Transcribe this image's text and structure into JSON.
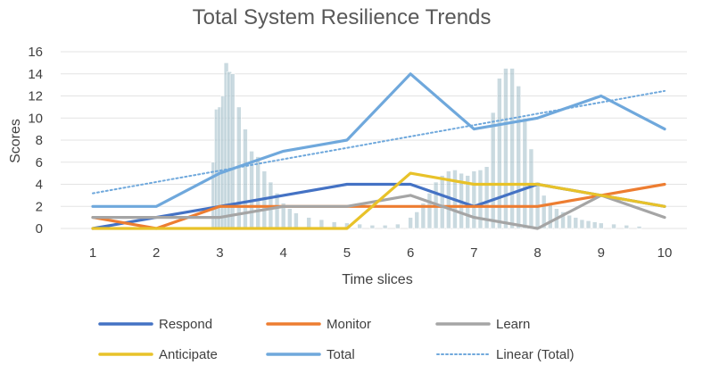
{
  "chart_data": {
    "type": "line",
    "title": "Total System Resilience Trends",
    "xlabel": "Time slices",
    "ylabel": "Scores",
    "x": [
      1,
      2,
      3,
      4,
      5,
      6,
      7,
      8,
      9,
      10
    ],
    "ylim": [
      0,
      16
    ],
    "yticks": [
      0,
      2,
      4,
      6,
      8,
      10,
      12,
      14,
      16
    ],
    "grid": true,
    "legend_position": "bottom",
    "series": [
      {
        "name": "Respond",
        "color": "#4472C4",
        "style": "solid",
        "values": [
          0,
          1,
          2,
          3,
          4,
          4,
          2,
          4,
          3,
          2
        ]
      },
      {
        "name": "Monitor",
        "color": "#ED7D31",
        "style": "solid",
        "values": [
          1,
          0,
          2,
          2,
          2,
          2,
          2,
          2,
          3,
          4
        ]
      },
      {
        "name": "Learn",
        "color": "#A5A5A5",
        "style": "solid",
        "values": [
          1,
          1,
          1,
          2,
          2,
          3,
          1,
          0,
          3,
          1
        ]
      },
      {
        "name": "Anticipate",
        "color": "#E8C229",
        "style": "solid",
        "values": [
          0,
          0,
          0,
          0,
          0,
          5,
          4,
          4,
          3,
          2
        ]
      },
      {
        "name": "Total",
        "color": "#6FA8DC",
        "style": "solid",
        "values": [
          2,
          2,
          5,
          7,
          8,
          14,
          9,
          10,
          12,
          9
        ]
      },
      {
        "name": "Linear (Total)",
        "color": "#6FA8DC",
        "style": "dotted",
        "values": [
          3.18,
          4.21,
          5.24,
          6.27,
          7.3,
          8.33,
          9.36,
          10.39,
          11.42,
          12.45
        ]
      }
    ],
    "background_histogram": {
      "color": "#9FBBC6",
      "x": [
        2.9,
        2.95,
        3.0,
        3.05,
        3.1,
        3.15,
        3.2,
        3.3,
        3.4,
        3.5,
        3.6,
        3.7,
        3.8,
        3.9,
        4.0,
        4.1,
        4.2,
        4.4,
        4.6,
        4.8,
        5.0,
        5.2,
        5.4,
        5.6,
        5.8,
        6.0,
        6.1,
        6.2,
        6.3,
        6.4,
        6.5,
        6.6,
        6.7,
        6.8,
        6.9,
        7.0,
        7.1,
        7.2,
        7.3,
        7.4,
        7.5,
        7.6,
        7.7,
        7.8,
        7.9,
        8.0,
        8.1,
        8.2,
        8.3,
        8.4,
        8.5,
        8.6,
        8.7,
        8.8,
        8.9,
        9.0,
        9.2,
        9.4,
        9.6
      ],
      "values": [
        6,
        10.8,
        11,
        12,
        15,
        14.2,
        14,
        11,
        9,
        7,
        6.5,
        5.2,
        4.2,
        3.2,
        2.3,
        1.8,
        1.4,
        1,
        0.8,
        0.6,
        0.5,
        0.4,
        0.3,
        0.3,
        0.4,
        1,
        1.5,
        2.3,
        3.2,
        4.2,
        4.8,
        5.2,
        5.3,
        5,
        4.8,
        5.2,
        5.3,
        5.6,
        10.5,
        13.6,
        14.5,
        14.5,
        12.9,
        10,
        7.2,
        4.2,
        3,
        2.3,
        1.8,
        1.5,
        1.2,
        1,
        0.8,
        0.7,
        0.6,
        0.5,
        0.4,
        0.3,
        0.2
      ]
    }
  }
}
